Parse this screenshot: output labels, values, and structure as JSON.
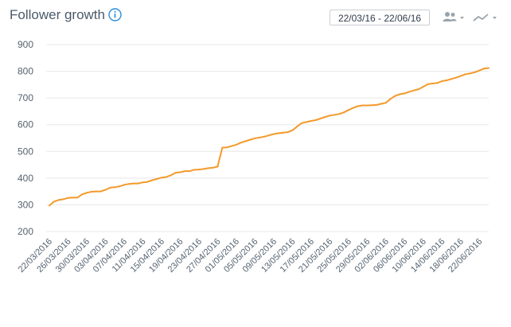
{
  "header": {
    "title": "Follower growth",
    "date_range": "22/03/16 - 22/06/16",
    "icons": [
      "info-icon",
      "people-icon",
      "chevron-down-icon",
      "line-chart-icon",
      "chevron-down-icon"
    ]
  },
  "colors": {
    "line": "#f39a2b",
    "grid": "#e6e8ea",
    "title": "#4a5a6a",
    "info": "#2a8de0",
    "toolbar": "#9aa3ab"
  },
  "chart_data": {
    "type": "line",
    "title": "Follower growth",
    "xlabel": "",
    "ylabel": "",
    "ylim": [
      200,
      900
    ],
    "yticks": [
      "200",
      "300",
      "400",
      "500",
      "600",
      "700",
      "800",
      "900"
    ],
    "grid": true,
    "legend": "none",
    "xtick_labels": [
      "22/03/2016",
      "26/03/2016",
      "30/03/2016",
      "03/04/2016",
      "07/04/2016",
      "11/04/2016",
      "15/04/2016",
      "19/04/2016",
      "23/04/2016",
      "27/04/2016",
      "01/05/2016",
      "05/05/2016",
      "09/05/2016",
      "13/05/2016",
      "17/05/2016",
      "21/05/2016",
      "25/05/2016",
      "29/05/2016",
      "02/06/2016",
      "06/06/2016",
      "10/06/2016",
      "14/06/2016",
      "18/06/2016",
      "22/06/2016"
    ],
    "series": [
      {
        "x_start": "22/03/2016",
        "x_end": "22/06/2016",
        "values": [
          297,
          312,
          318,
          321,
          326,
          327,
          327,
          339,
          345,
          349,
          350,
          350,
          356,
          364,
          366,
          369,
          375,
          378,
          380,
          380,
          384,
          386,
          392,
          397,
          402,
          404,
          411,
          420,
          422,
          426,
          426,
          431,
          432,
          434,
          437,
          439,
          443,
          514,
          515,
          520,
          525,
          533,
          538,
          544,
          549,
          552,
          555,
          560,
          565,
          568,
          570,
          572,
          579,
          593,
          606,
          610,
          614,
          617,
          623,
          629,
          634,
          637,
          640,
          646,
          655,
          663,
          669,
          672,
          672,
          673,
          674,
          678,
          682,
          697,
          708,
          714,
          717,
          723,
          728,
          733,
          742,
          752,
          754,
          756,
          763,
          766,
          771,
          776,
          782,
          789,
          792,
          796,
          803,
          810,
          812
        ]
      }
    ]
  }
}
